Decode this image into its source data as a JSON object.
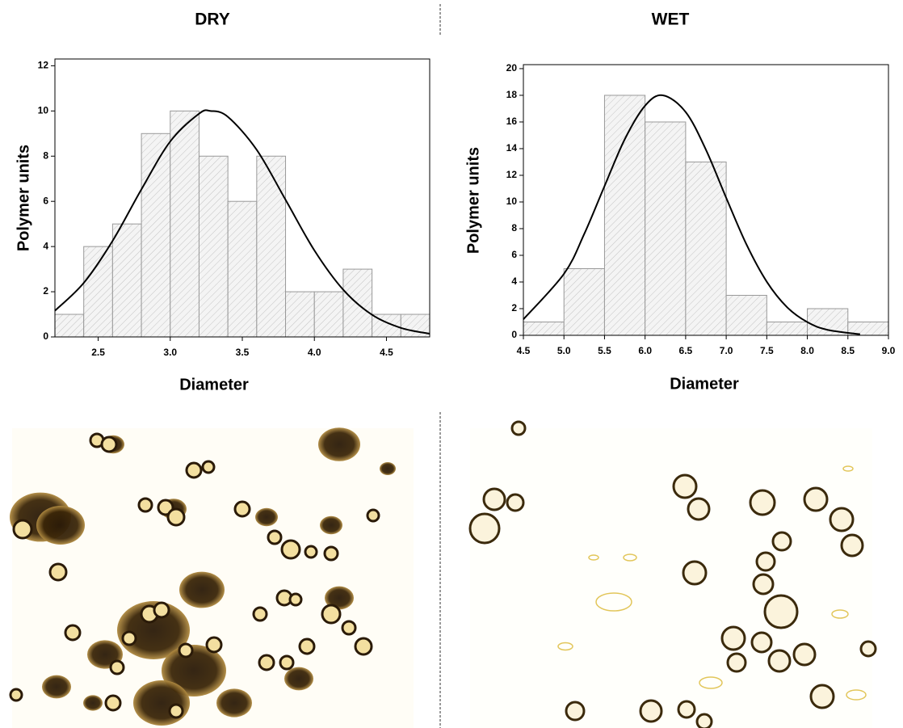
{
  "chart_data": [
    {
      "type": "histogram",
      "title": "DRY",
      "xlabel": "Diameter",
      "ylabel": "Polymer units",
      "bins": [
        2.2,
        2.4,
        2.6,
        2.8,
        3.0,
        3.2,
        3.4,
        3.6,
        3.8,
        4.0,
        4.2,
        4.4,
        4.6,
        4.8
      ],
      "values": [
        1,
        4,
        5,
        9,
        10,
        8,
        6,
        8,
        2,
        2,
        3,
        1,
        1
      ],
      "color": "#999999",
      "curve_x": [
        2.2,
        2.4,
        2.6,
        2.8,
        3.0,
        3.2,
        3.28,
        3.4,
        3.6,
        3.8,
        4.0,
        4.2,
        4.4,
        4.6,
        4.8
      ],
      "curve_y": [
        1.16,
        2.39,
        4.25,
        6.53,
        8.65,
        9.88,
        10,
        9.74,
        8.28,
        6.07,
        3.83,
        2.09,
        0.98,
        0.4,
        0.14
      ],
      "xlim": [
        2.2,
        4.8
      ],
      "ylim": [
        0,
        12.3
      ],
      "xticks": [
        2.5,
        {
          "value": 3,
          "label": "3.0"
        },
        3.5,
        {
          "value": 4,
          "label": "4.0"
        },
        4.5
      ],
      "yticks": [
        0,
        2,
        4,
        6,
        8,
        10,
        12
      ]
    },
    {
      "type": "histogram",
      "title": "WET",
      "xlabel": "Diameter",
      "ylabel": "Polymer units",
      "bins": [
        4.5,
        5.0,
        5.5,
        6.0,
        6.5,
        7.0,
        7.5,
        8.0,
        8.5,
        9.0
      ],
      "values": [
        1,
        5,
        18,
        16,
        13,
        3,
        1,
        2,
        1
      ],
      "color": "#999999",
      "curve_x": [
        4.5,
        5.0,
        5.25,
        5.5,
        5.75,
        6.0,
        6.22,
        6.5,
        6.75,
        7.0,
        7.25,
        7.5,
        7.75,
        8.0,
        8.25,
        8.65
      ],
      "curve_y": [
        1.2,
        4.61,
        7.6,
        11.19,
        14.71,
        17.22,
        18,
        16.75,
        13.92,
        10.31,
        6.81,
        4.02,
        2.11,
        0.99,
        0.41,
        0.08
      ],
      "xlim": [
        4.5,
        9.0
      ],
      "ylim": [
        0,
        20.3
      ],
      "xticks": [
        4.5,
        {
          "value": 5,
          "label": "5.0"
        },
        5.5,
        {
          "value": 6,
          "label": "6.0"
        },
        6.5,
        {
          "value": 7,
          "label": "7.0"
        },
        7.5,
        {
          "value": 8,
          "label": "8.0"
        },
        8.5,
        {
          "value": 9,
          "label": "9.0"
        }
      ],
      "yticks": [
        0,
        2,
        4,
        6,
        8,
        10,
        12,
        14,
        16,
        18,
        20
      ]
    }
  ]
}
